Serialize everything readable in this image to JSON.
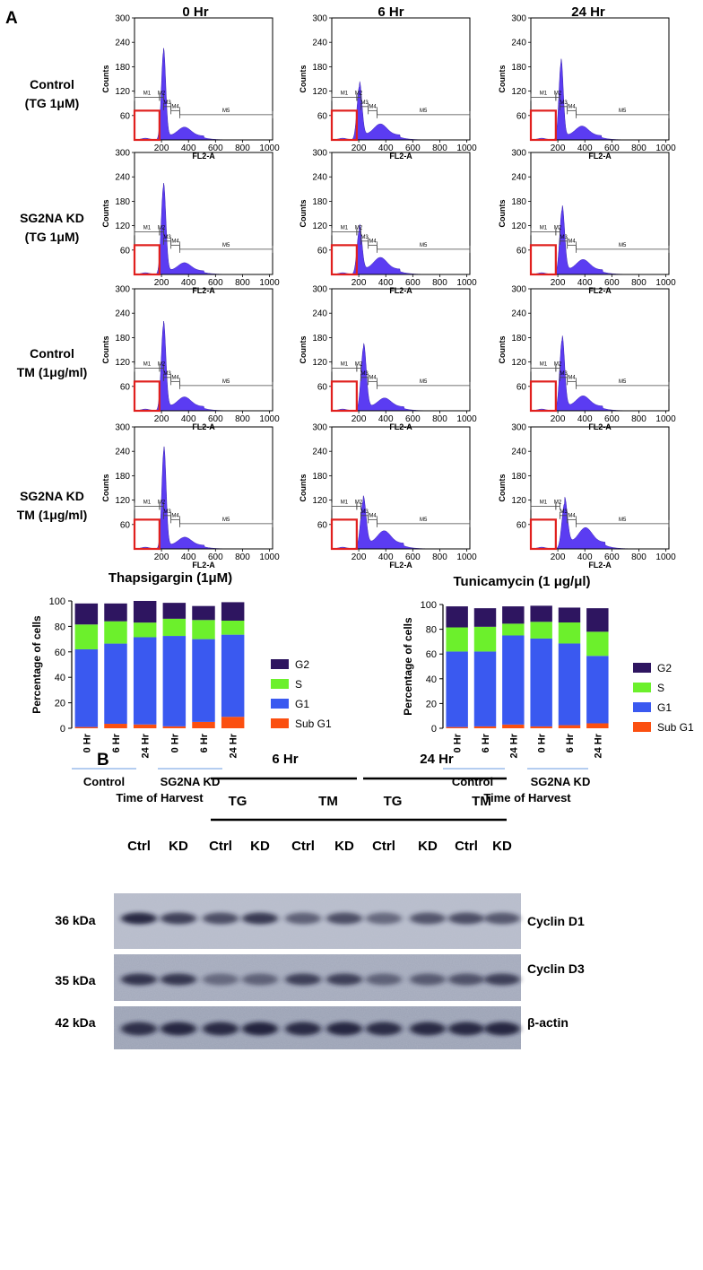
{
  "panel_a_label": "A",
  "panel_b_label": "B",
  "flow": {
    "columns": [
      "0 Hr",
      "6 Hr",
      "24 Hr"
    ],
    "rows": [
      [
        "Control",
        "(TG 1μM)"
      ],
      [
        "SG2NA KD",
        "(TG 1μM)"
      ],
      [
        "Control",
        "TM (1μg/ml)"
      ],
      [
        "SG2NA KD",
        "TM (1μg/ml)"
      ]
    ],
    "ylabel": "Counts",
    "xlabel": "FL2-A",
    "yticks": [
      "300",
      "240",
      "180",
      "120",
      "60"
    ],
    "xticks": [
      "200",
      "400",
      "600",
      "800",
      "1000"
    ],
    "markers": [
      "M1",
      "M2",
      "M3",
      "M4",
      "M5"
    ],
    "fill_color": "#5b3cf2",
    "box_color": "#e0201e"
  },
  "chart_data": [
    {
      "type": "bar",
      "title": "Thapsigargin (1μM)",
      "categories": [
        "0 Hr",
        "6 Hr",
        "24 Hr",
        "0 Hr",
        "6 Hr",
        "24 Hr"
      ],
      "groups": [
        "Control",
        "SG2NA KD"
      ],
      "xlabel": "Time of Harvest",
      "ylabel": "Percentage of cells",
      "ylim": [
        0,
        100
      ],
      "yticks": [
        "0",
        "20",
        "40",
        "60",
        "80",
        "100"
      ],
      "legend": [
        "G2",
        "S",
        "G1",
        "Sub G1"
      ],
      "series": [
        {
          "name": "Sub G1",
          "values": [
            1,
            3.5,
            3,
            1.5,
            5,
            9
          ]
        },
        {
          "name": "G1",
          "values": [
            61,
            63,
            68.5,
            71,
            65,
            64.5
          ]
        },
        {
          "name": "S",
          "values": [
            19.5,
            17.5,
            11.5,
            13.5,
            15,
            11
          ]
        },
        {
          "name": "G2",
          "values": [
            16.5,
            14,
            17,
            12.5,
            11,
            14.5
          ]
        }
      ]
    },
    {
      "type": "bar",
      "title": "Tunicamycin (1 μg/μl)",
      "categories": [
        "0 Hr",
        "6 Hr",
        "24 Hr",
        "0 Hr",
        "6 Hr",
        "24 Hr"
      ],
      "groups": [
        "Control",
        "SG2NA KD"
      ],
      "xlabel": "Time of Harvest",
      "ylabel": "Percentage of cells",
      "ylim": [
        0,
        100
      ],
      "yticks": [
        "0",
        "20",
        "40",
        "60",
        "80",
        "100"
      ],
      "legend": [
        "G2",
        "S",
        "G1",
        "Sub G1"
      ],
      "series": [
        {
          "name": "Sub G1",
          "values": [
            1,
            1.5,
            3,
            1.5,
            2.5,
            4
          ]
        },
        {
          "name": "G1",
          "values": [
            61,
            60.5,
            72,
            71,
            66,
            54.5
          ]
        },
        {
          "name": "S",
          "values": [
            19.5,
            20,
            9.5,
            13.5,
            17,
            19.5
          ]
        },
        {
          "name": "G2",
          "values": [
            17,
            15,
            14,
            13,
            12,
            19
          ]
        }
      ]
    }
  ],
  "colors": {
    "G2": "#2e1560",
    "S": "#6cf02c",
    "G1": "#3a59f0",
    "Sub G1": "#fb4f10",
    "blueline": "#6a9be0"
  },
  "blot": {
    "time_labels": [
      "6 Hr",
      "24 Hr"
    ],
    "treatment_labels": [
      "TG",
      "TM",
      "TG",
      "TM"
    ],
    "lane_labels": [
      "Ctrl",
      "KD",
      "Ctrl",
      "KD",
      "Ctrl",
      "KD",
      "Ctrl",
      "KD",
      "Ctrl",
      "KD"
    ],
    "kda_labels": [
      "36 kDa",
      "35 kDa",
      "42 kDa"
    ],
    "proteins": [
      "Cyclin D1",
      "Cyclin D3",
      "β-actin"
    ]
  }
}
